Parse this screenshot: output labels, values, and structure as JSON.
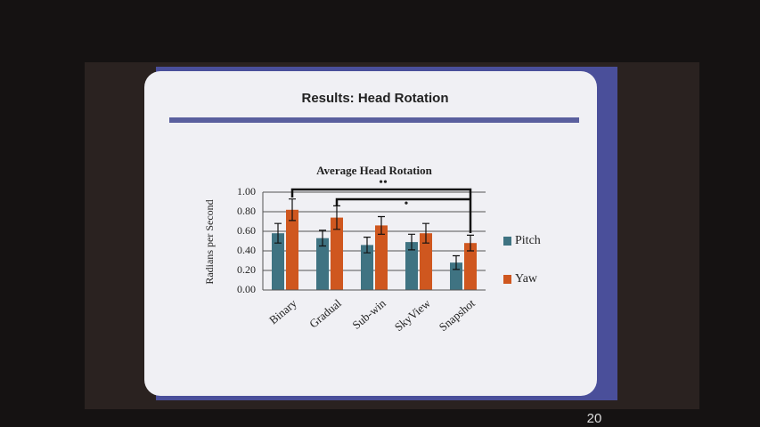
{
  "slide_title": "Results: Head Rotation",
  "slide_number": "20",
  "chart_data": {
    "type": "bar",
    "title": "Average Head Rotation",
    "y_label": "Radians per Second",
    "categories": [
      "Binary",
      "Gradual",
      "Sub-win",
      "SkyView",
      "Snapshot"
    ],
    "series": [
      {
        "name": "Pitch",
        "color": "#3f7382",
        "values": [
          0.58,
          0.53,
          0.46,
          0.49,
          0.28
        ],
        "errors": [
          0.1,
          0.08,
          0.08,
          0.08,
          0.07
        ]
      },
      {
        "name": "Yaw",
        "color": "#cf571f",
        "values": [
          0.82,
          0.74,
          0.66,
          0.58,
          0.48
        ],
        "errors": [
          0.11,
          0.12,
          0.09,
          0.1,
          0.08
        ]
      }
    ],
    "ylim": [
      0,
      1
    ],
    "yticks": [
      {
        "value": 0,
        "label": "0.00"
      },
      {
        "value": 0.2,
        "label": "0.20"
      },
      {
        "value": 0.4,
        "label": "0.40"
      },
      {
        "value": 0.6,
        "label": "0.60"
      },
      {
        "value": 0.8,
        "label": "0.80"
      },
      {
        "value": 1,
        "label": "1.00"
      }
    ],
    "grid": true,
    "legend": "right",
    "annotations": [
      "••",
      "•"
    ]
  }
}
